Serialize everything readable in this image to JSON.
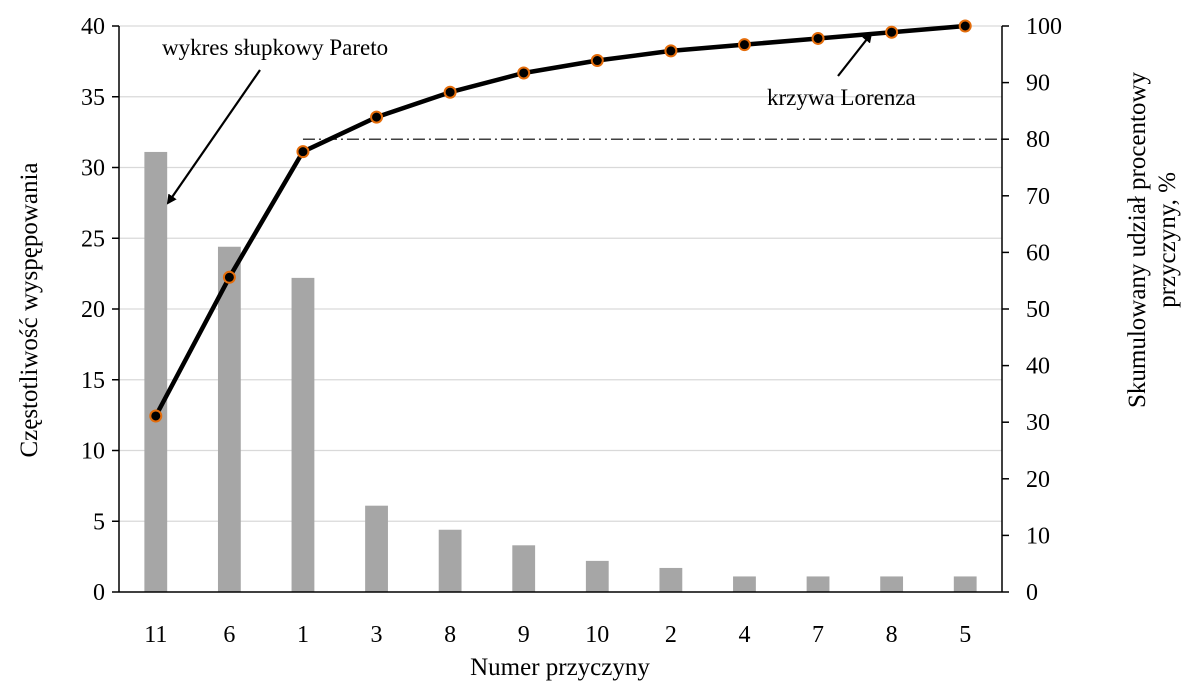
{
  "chart_data": {
    "type": "bar+line",
    "categories": [
      "11",
      "6",
      "1",
      "3",
      "8",
      "9",
      "10",
      "2",
      "4",
      "7",
      "8",
      "5"
    ],
    "series": [
      {
        "type": "bar",
        "axis": "left",
        "color": "#a6a6a6",
        "values": [
          31.1,
          24.4,
          22.2,
          6.1,
          4.4,
          3.3,
          2.2,
          1.7,
          1.1,
          1.1,
          1.1,
          1.1
        ]
      },
      {
        "type": "line",
        "axis": "right",
        "color": "#000000",
        "marker_fill": "#000000",
        "marker_stroke": "#e46c0a",
        "values": [
          31.1,
          55.6,
          77.8,
          83.9,
          88.3,
          91.7,
          93.9,
          95.6,
          96.7,
          97.8,
          98.9,
          100
        ]
      }
    ],
    "reference_line": {
      "axis": "right",
      "value": 80,
      "style": "dash-dot",
      "from_category_index": 2
    },
    "xlabel": "Numer przyczyny",
    "ylabel_left": "Częstotliwość wyspępowania",
    "ylabel_right": [
      "Skumulowany udział procentowy",
      "przyczyny, %"
    ],
    "ylim_left": [
      0,
      40
    ],
    "yticks_left": [
      0,
      5,
      10,
      15,
      20,
      25,
      30,
      35,
      40
    ],
    "ylim_right": [
      0,
      100
    ],
    "yticks_right": [
      0,
      10,
      20,
      30,
      40,
      50,
      60,
      70,
      80,
      90,
      100
    ],
    "grid": true,
    "annotations": [
      {
        "text": "wykres słupkowy Pareto",
        "target_series": "bar",
        "target_index": 0
      },
      {
        "text": "krzywa Lorenza",
        "target_series": "line",
        "target_index": 10
      }
    ]
  }
}
